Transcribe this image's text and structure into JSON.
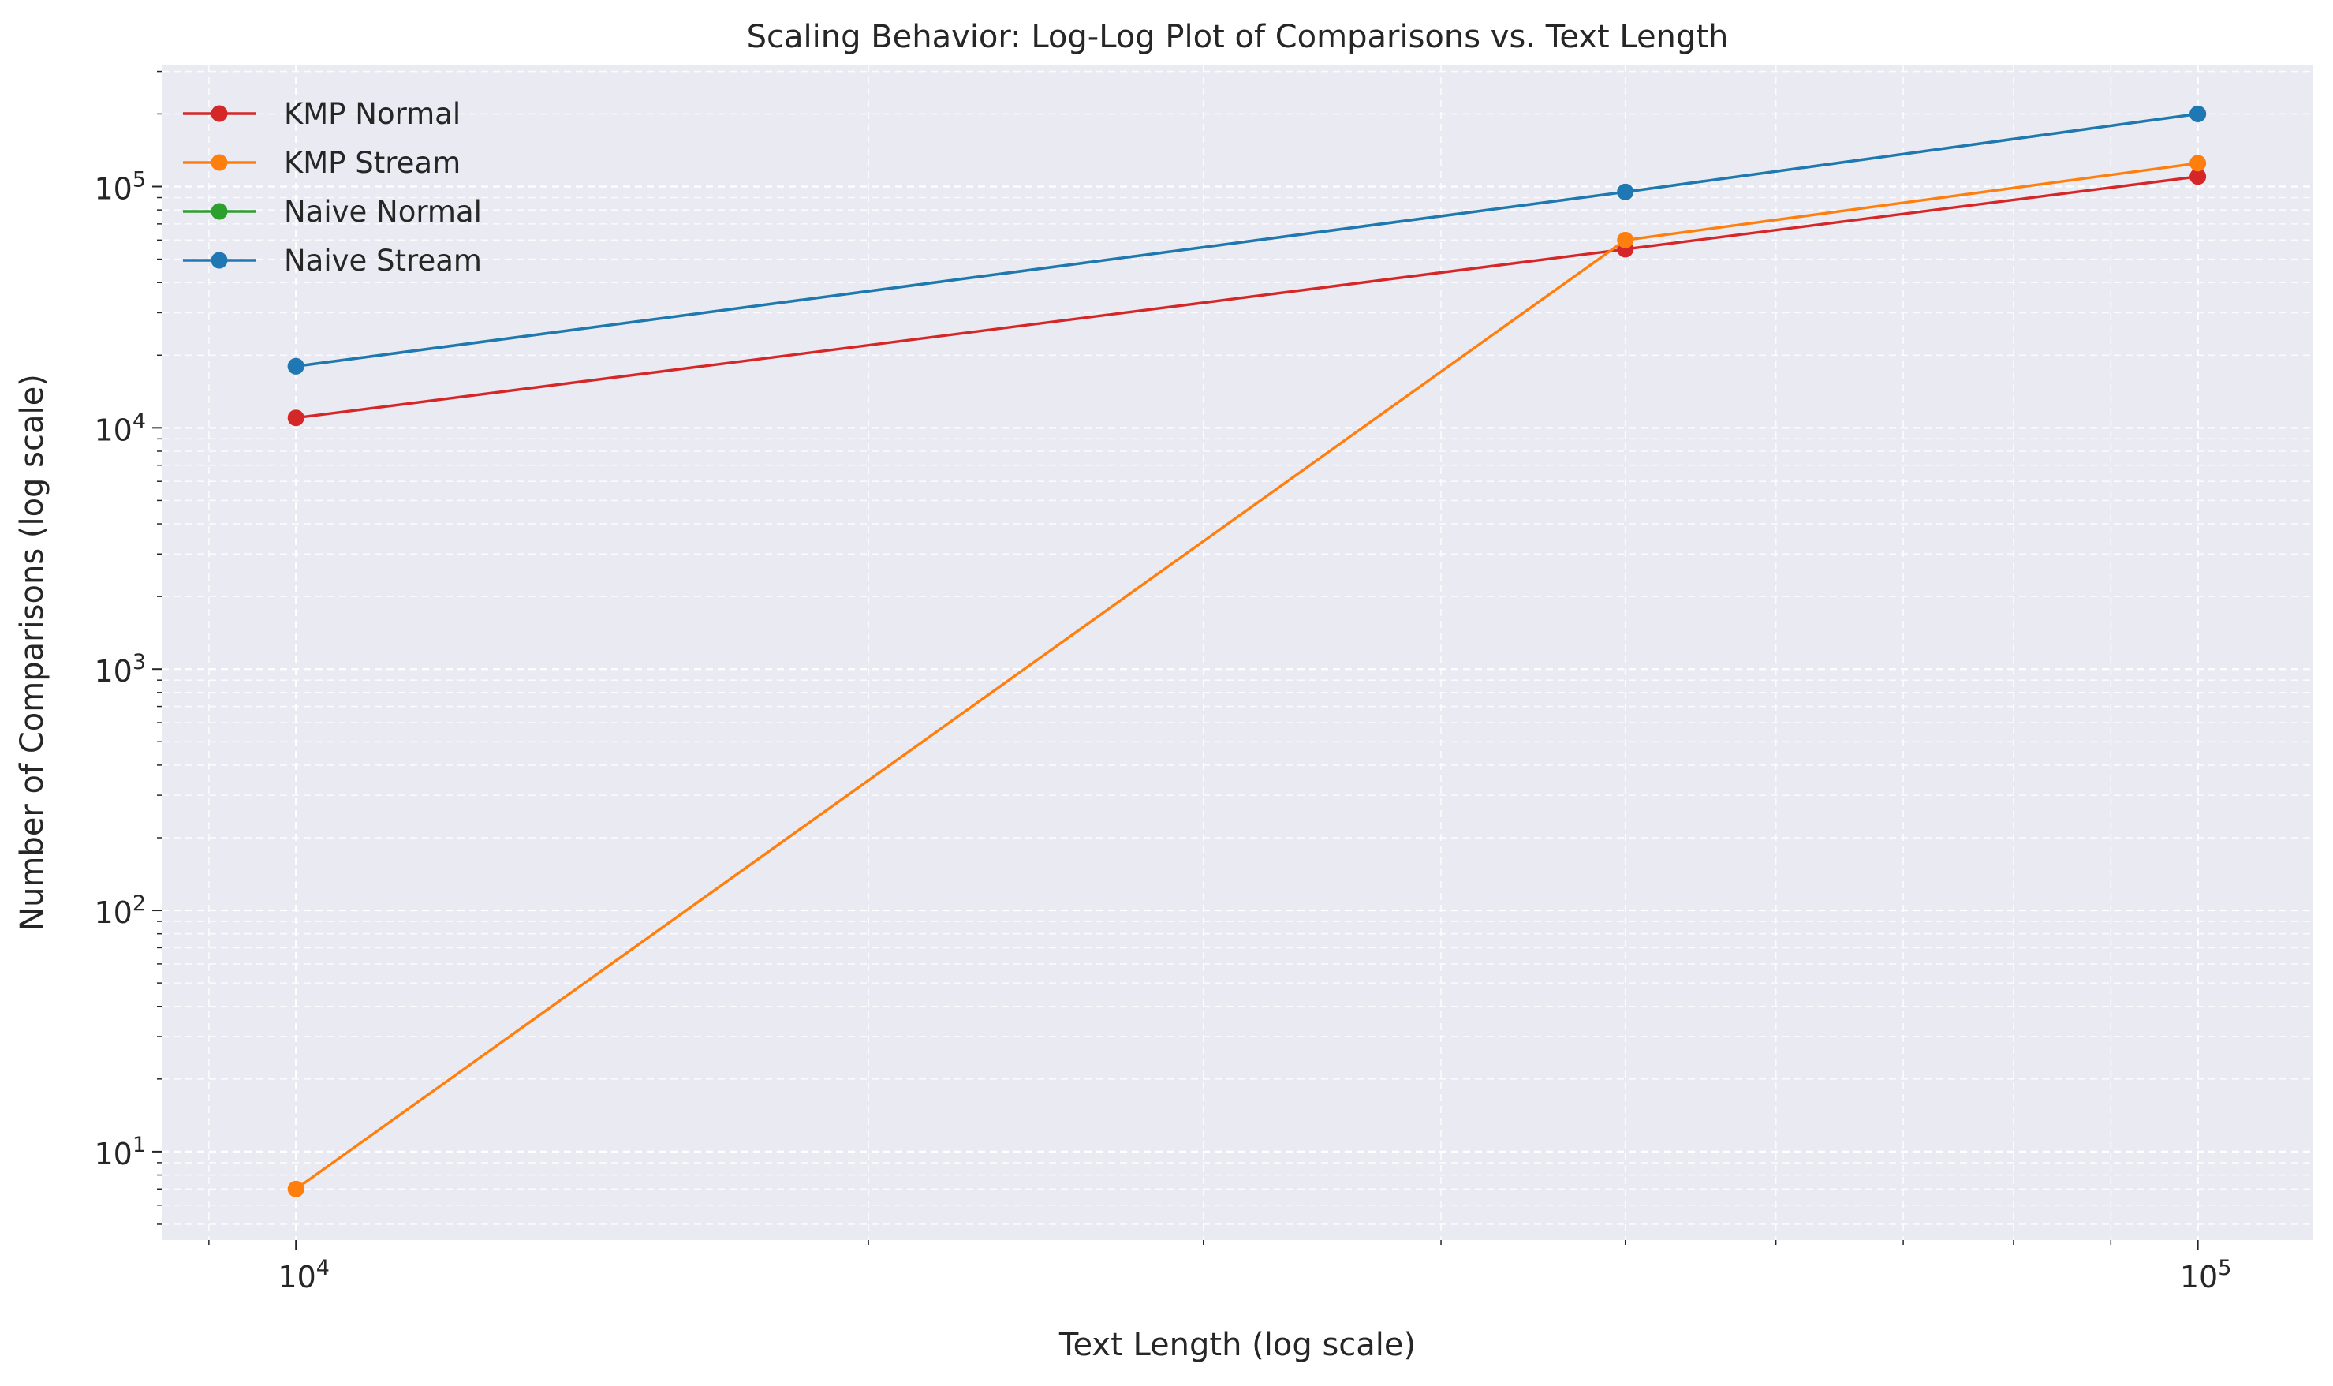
{
  "chart_data": {
    "type": "line",
    "title": "Scaling Behavior: Log-Log Plot of Comparisons vs. Text Length",
    "xlabel": "Text Length (log scale)",
    "ylabel": "Number of Comparisons (log scale)",
    "x_scale": "log",
    "y_scale": "log",
    "xlim": [
      8500,
      115000
    ],
    "ylim": [
      4.3,
      320000
    ],
    "x_ticks": [
      {
        "value": 10000,
        "base": "10",
        "exp": "4"
      },
      {
        "value": 100000,
        "base": "10",
        "exp": "5"
      }
    ],
    "y_ticks": [
      {
        "value": 10,
        "base": "10",
        "exp": "1"
      },
      {
        "value": 100,
        "base": "10",
        "exp": "2"
      },
      {
        "value": 1000,
        "base": "10",
        "exp": "3"
      },
      {
        "value": 10000,
        "base": "10",
        "exp": "4"
      },
      {
        "value": 100000,
        "base": "10",
        "exp": "5"
      }
    ],
    "grid": true,
    "grid_style": "dashed",
    "legend_position": "top-left",
    "background": "#eaeaf2",
    "series": [
      {
        "name": "KMP Normal",
        "color": "#d62728",
        "x": [
          10000,
          50000,
          100000
        ],
        "y": [
          11000,
          55000,
          110000
        ]
      },
      {
        "name": "KMP Stream",
        "color": "#ff7f0e",
        "x": [
          10000,
          50000,
          100000
        ],
        "y": [
          7,
          60000,
          125000
        ]
      },
      {
        "name": "Naive Normal",
        "color": "#2ca02c",
        "x": [
          10000,
          50000,
          100000
        ],
        "y": [
          18000,
          95000,
          200000
        ]
      },
      {
        "name": "Naive Stream",
        "color": "#1f77b4",
        "x": [
          10000,
          50000,
          100000
        ],
        "y": [
          18000,
          95000,
          200000
        ]
      }
    ]
  }
}
